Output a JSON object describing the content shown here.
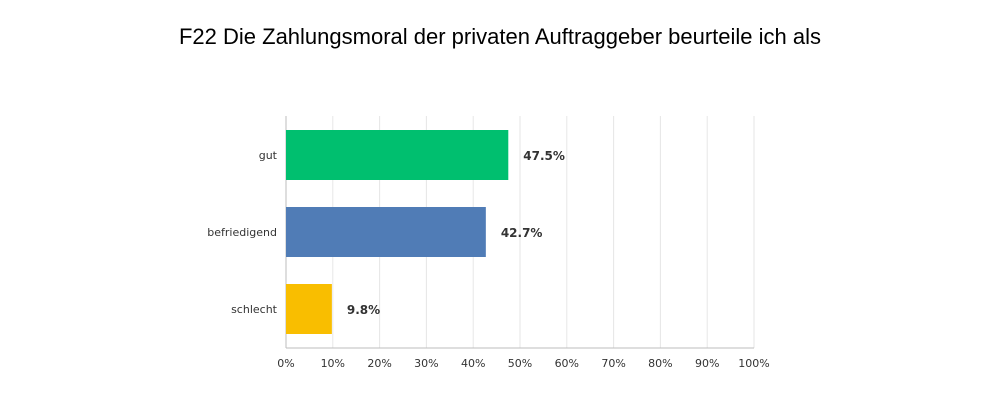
{
  "chart_data": {
    "type": "bar",
    "orientation": "horizontal",
    "title": "F22 Die Zahlungsmoral der privaten Auftraggeber beurteile ich als",
    "categories": [
      "gut",
      "befriedigend",
      "schlecht"
    ],
    "values": [
      47.5,
      42.7,
      9.8
    ],
    "value_labels": [
      "47.5%",
      "42.7%",
      "9.8%"
    ],
    "colors": [
      "#00bf6f",
      "#507cb6",
      "#f9be00"
    ],
    "xlim": [
      0,
      100
    ],
    "ticks": [
      "0%",
      "10%",
      "20%",
      "30%",
      "40%",
      "50%",
      "60%",
      "70%",
      "80%",
      "90%",
      "100%"
    ],
    "grid": true,
    "legend": "none"
  }
}
